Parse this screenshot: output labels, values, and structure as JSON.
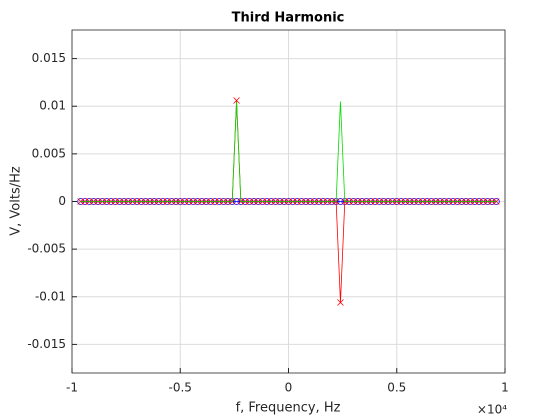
{
  "chart_data": {
    "type": "line",
    "title": "Third Harmonic",
    "x_label": "f, Frequency, Hz",
    "y_label": "V, Volts/Hz",
    "x_exponent_label": "×10⁴",
    "x": [
      -9600,
      -9400,
      -9200,
      -9000,
      -8800,
      -8600,
      -8400,
      -8200,
      -8000,
      -7800,
      -7600,
      -7400,
      -7200,
      -7000,
      -6800,
      -6600,
      -6400,
      -6200,
      -6000,
      -5800,
      -5600,
      -5400,
      -5200,
      -5000,
      -4800,
      -4600,
      -4400,
      -4200,
      -4000,
      -3800,
      -3600,
      -3400,
      -3200,
      -3000,
      -2800,
      -2600,
      -2400,
      -2200,
      -2000,
      -1800,
      -1600,
      -1400,
      -1200,
      -1000,
      -800,
      -600,
      -400,
      -200,
      0,
      200,
      400,
      600,
      800,
      1000,
      1200,
      1400,
      1600,
      1800,
      2000,
      2200,
      2400,
      2600,
      2800,
      3000,
      3200,
      3400,
      3600,
      3800,
      4000,
      4200,
      4400,
      4600,
      4800,
      5000,
      5200,
      5400,
      5600,
      5800,
      6000,
      6200,
      6400,
      6600,
      6800,
      7000,
      7200,
      7400,
      7600,
      7800,
      8000,
      8200,
      8400,
      8600,
      8800,
      9000,
      9200,
      9400,
      9600
    ],
    "series": [
      {
        "color": "#0000ff",
        "marker": "circle",
        "values": [
          0,
          0,
          0,
          0,
          0,
          0,
          0,
          0,
          0,
          0,
          0,
          0,
          0,
          0,
          0,
          0,
          0,
          0,
          0,
          0,
          0,
          0,
          0,
          0,
          0,
          0,
          0,
          0,
          0,
          0,
          0,
          0,
          0,
          0,
          0,
          0,
          0,
          0,
          0,
          0,
          0,
          0,
          0,
          0,
          0,
          0,
          0,
          0,
          0,
          0,
          0,
          0,
          0,
          0,
          0,
          0,
          0,
          0,
          0,
          0,
          0,
          0,
          0,
          0,
          0,
          0,
          0,
          0,
          0,
          0,
          0,
          0,
          0,
          0,
          0,
          0,
          0,
          0,
          0,
          0,
          0,
          0,
          0,
          0,
          0,
          0,
          0,
          0,
          0,
          0,
          0,
          0,
          0,
          0,
          0,
          0,
          0
        ]
      },
      {
        "color": "#ff0000",
        "marker": "x",
        "values": [
          0,
          0,
          0,
          0,
          0,
          0,
          0,
          0,
          0,
          0,
          0,
          0,
          0,
          0,
          0,
          0,
          0,
          0,
          0,
          0,
          0,
          0,
          0,
          0,
          0,
          0,
          0,
          0,
          0,
          0,
          0,
          0,
          0,
          0,
          0,
          0,
          0.0106,
          0,
          0,
          0,
          0,
          0,
          0,
          0,
          0,
          0,
          0,
          0,
          0,
          0,
          0,
          0,
          0,
          0,
          0,
          0,
          0,
          0,
          0,
          0,
          -0.0106,
          0,
          0,
          0,
          0,
          0,
          0,
          0,
          0,
          0,
          0,
          0,
          0,
          0,
          0,
          0,
          0,
          0,
          0,
          0,
          0,
          0,
          0,
          0,
          0,
          0,
          0,
          0,
          0,
          0,
          0,
          0,
          0,
          0,
          0,
          0,
          0
        ]
      },
      {
        "color": "#00dd00",
        "marker": "none",
        "values": [
          0,
          0,
          0,
          0,
          0,
          0,
          0,
          0,
          0,
          0,
          0,
          0,
          0,
          0,
          0,
          0,
          0,
          0,
          0,
          0,
          0,
          0,
          0,
          0,
          0,
          0,
          0,
          0,
          0,
          0,
          0,
          0,
          0,
          0,
          0,
          0,
          0.0105,
          0,
          0,
          0,
          0,
          0,
          0,
          0,
          0,
          0,
          0,
          0,
          0,
          0,
          0,
          0,
          0,
          0,
          0,
          0,
          0,
          0,
          0,
          0,
          0.0105,
          0,
          0,
          0,
          0,
          0,
          0,
          0,
          0,
          0,
          0,
          0,
          0,
          0,
          0,
          0,
          0,
          0,
          0,
          0,
          0,
          0,
          0,
          0,
          0,
          0,
          0,
          0,
          0,
          0,
          0,
          0,
          0,
          0,
          0,
          0,
          0
        ]
      }
    ],
    "xlim": [
      -10000,
      10000
    ],
    "xticks": [
      {
        "value": -10000,
        "label": "-1"
      },
      {
        "value": -5000,
        "label": "-0.5"
      },
      {
        "value": 0,
        "label": "0"
      },
      {
        "value": 5000,
        "label": "0.5"
      },
      {
        "value": 10000,
        "label": "1"
      }
    ],
    "ylim": [
      -0.018,
      0.018
    ],
    "yticks": [
      -0.015,
      -0.01,
      -0.005,
      0,
      0.005,
      0.01,
      0.015
    ],
    "grid": true
  }
}
